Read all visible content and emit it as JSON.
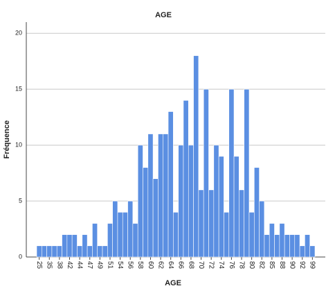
{
  "chart_data": {
    "type": "bar",
    "title": "AGE",
    "x_label": "AGE",
    "y_label": "Fréquence",
    "categories": [
      "25",
      null,
      "35",
      null,
      "38",
      null,
      "42",
      null,
      "44",
      null,
      "47",
      null,
      "49",
      null,
      "51",
      null,
      "54",
      null,
      "56",
      null,
      "58",
      null,
      "60",
      null,
      "62",
      null,
      "64",
      null,
      "66",
      null,
      "68",
      null,
      "70",
      null,
      "72",
      null,
      "74",
      null,
      "76",
      null,
      "78",
      null,
      "80",
      null,
      "82",
      null,
      "85",
      null,
      "88",
      null,
      "90",
      null,
      "92",
      null,
      "99"
    ],
    "values": [
      1,
      1,
      1,
      1,
      1,
      2,
      2,
      2,
      1,
      2,
      1,
      3,
      1,
      1,
      3,
      5,
      4,
      4,
      5,
      3,
      10,
      8,
      11,
      7,
      11,
      11,
      13,
      4,
      10,
      14,
      10,
      18,
      6,
      15,
      6,
      10,
      9,
      4,
      15,
      9,
      6,
      15,
      4,
      8,
      5,
      2,
      3,
      2,
      3,
      2,
      2,
      2,
      1,
      2,
      1
    ],
    "color": "#5b8fe2",
    "ylim": [
      0,
      21
    ],
    "yticks": [
      0,
      5,
      10,
      15,
      20
    ],
    "grid": true
  }
}
